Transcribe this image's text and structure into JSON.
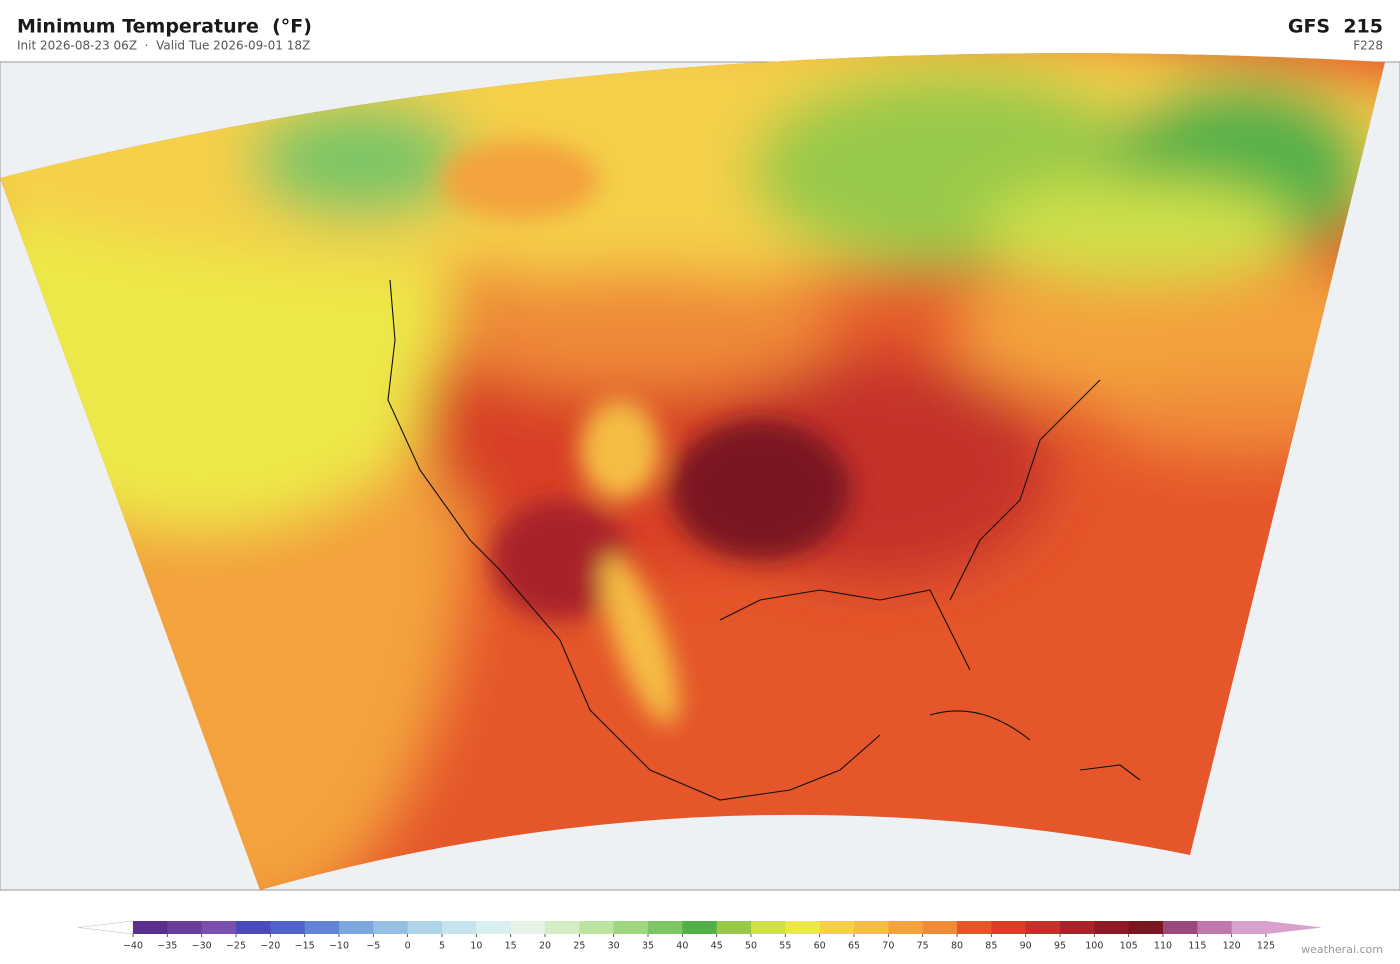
{
  "header": {
    "title": "Minimum Temperature  (°F)",
    "subtitle": "Init 2026-08-23 06Z  ·  Valid Tue 2026-09-01 18Z",
    "model": "GFS  215",
    "frame": "F228"
  },
  "colorbar": {
    "ticks": [
      {
        "value": -40,
        "label": "−40"
      },
      {
        "value": -35,
        "label": "−35"
      },
      {
        "value": -30,
        "label": "−30"
      },
      {
        "value": -25,
        "label": "−25"
      },
      {
        "value": -20,
        "label": "−20"
      },
      {
        "value": -15,
        "label": "−15"
      },
      {
        "value": -10,
        "label": "−10"
      },
      {
        "value": -5,
        "label": "−5"
      },
      0,
      5,
      10,
      15,
      20,
      25,
      30,
      35,
      40,
      45,
      50,
      55,
      60,
      65,
      70,
      75,
      80,
      85,
      90,
      95,
      100,
      105,
      110,
      115,
      120,
      125
    ],
    "colors": [
      "#5b2d8e",
      "#6a3d9a",
      "#7b4fb0",
      "#4a4bb8",
      "#4f63c9",
      "#6284d6",
      "#7ca6de",
      "#95c0e4",
      "#aed4ea",
      "#c6e4ee",
      "#d9eff0",
      "#e6f4e8",
      "#d4edc4",
      "#bde4a0",
      "#9fd680",
      "#7dc665",
      "#52b048",
      "#99c94a",
      "#cfe04a",
      "#ede84a",
      "#f5d04a",
      "#f5bd45",
      "#f3a23e",
      "#ef8a38",
      "#e5562a",
      "#d83f26",
      "#c4302a",
      "#a8232a",
      "#8c1a24",
      "#7a1620",
      "#9a4a7a",
      "#c077ad",
      "#d8a0cc"
    ],
    "under_color": "#ffffff",
    "over_color": "#d8a0cc"
  },
  "credit": "weatherai.com"
}
